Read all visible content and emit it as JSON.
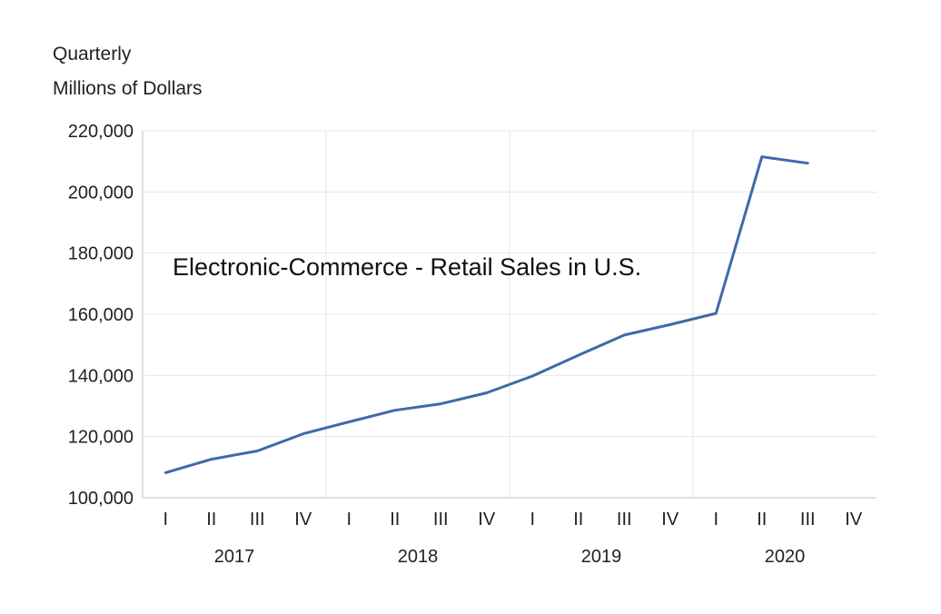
{
  "units": {
    "line1": "Quarterly",
    "line2": "Millions of Dollars"
  },
  "colors": {
    "series": "#4169a8",
    "grid": "#e6e6e6",
    "axis": "#bfbfbf"
  },
  "chart_data": {
    "type": "line",
    "title": "Electronic-Commerce - Retail Sales in U.S.",
    "ylabel": "Quarterly Millions of Dollars",
    "xlabel": "",
    "ylim": [
      100000,
      220000
    ],
    "yticks": [
      100000,
      120000,
      140000,
      160000,
      180000,
      200000,
      220000
    ],
    "ytick_labels": [
      "100,000",
      "120,000",
      "140,000",
      "160,000",
      "180,000",
      "200,000",
      "220,000"
    ],
    "categories": [
      "I",
      "II",
      "III",
      "IV",
      "I",
      "II",
      "III",
      "IV",
      "I",
      "II",
      "III",
      "IV",
      "I",
      "II",
      "III",
      "IV"
    ],
    "years": [
      "2017",
      "2018",
      "2019",
      "2020"
    ],
    "series": [
      {
        "name": "Electronic-Commerce - Retail Sales in U.S.",
        "values": [
          108200,
          112600,
          115300,
          120900,
          124800,
          128600,
          130700,
          134300,
          139800,
          146600,
          153200,
          156600,
          160300,
          211500,
          209400,
          null
        ]
      }
    ]
  }
}
